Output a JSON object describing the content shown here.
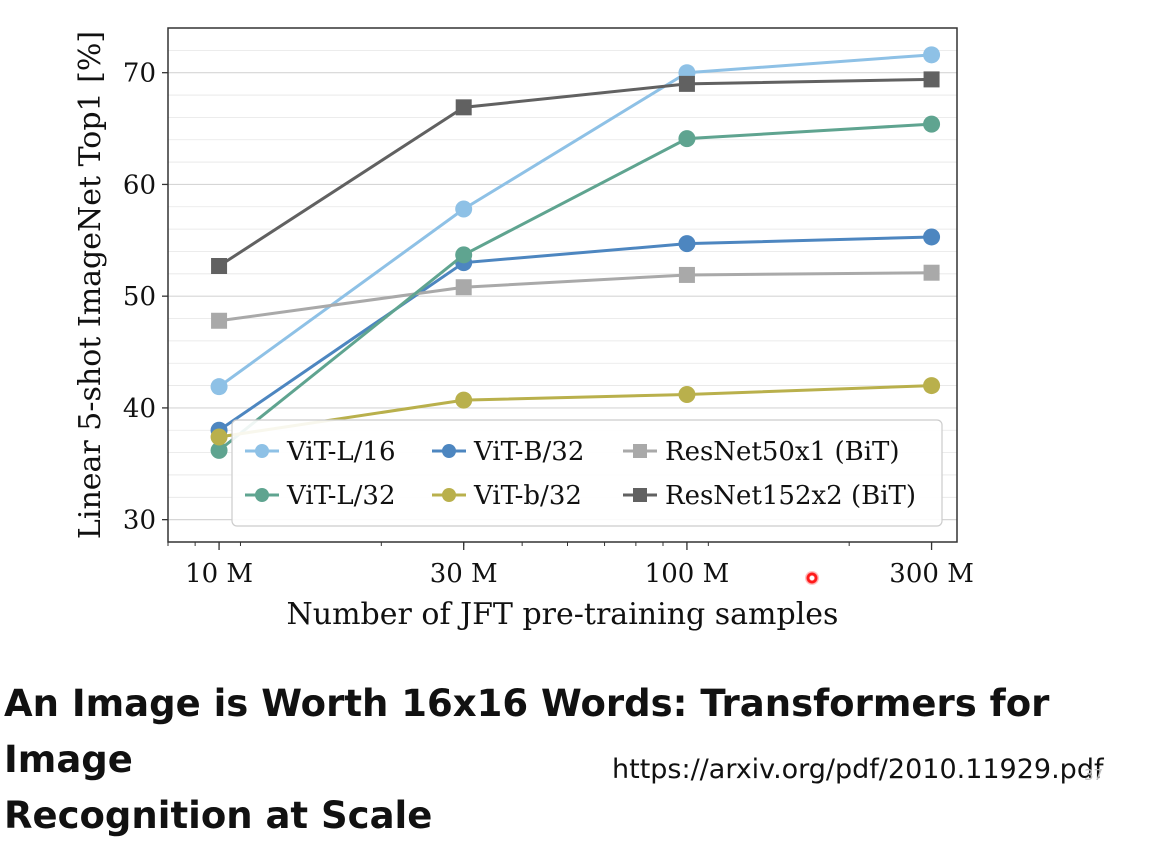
{
  "chart_data": {
    "type": "line",
    "xlabel": "Number of JFT pre-training samples",
    "ylabel": "Linear 5-shot ImageNet Top1 [%]",
    "x_scale": "log",
    "categories": [
      "10 M",
      "30 M",
      "100 M",
      "300 M"
    ],
    "x": [
      9,
      30,
      90,
      300
    ],
    "xlim": [
      7,
      340
    ],
    "ylim": [
      28,
      74
    ],
    "yticks": [
      30,
      40,
      50,
      60,
      70
    ],
    "grid": true,
    "legend": "lower-right",
    "series": [
      {
        "name": "ViT-L/16",
        "color": "#8ec1e6",
        "marker": "circle",
        "values": [
          41.9,
          57.8,
          70.0,
          71.6
        ]
      },
      {
        "name": "ViT-B/32",
        "color": "#4d86c0",
        "marker": "circle",
        "values": [
          38.0,
          53.0,
          54.7,
          55.3
        ]
      },
      {
        "name": "ResNet50x1 (BiT)",
        "color": "#a9a9a9",
        "marker": "square",
        "values": [
          47.8,
          50.8,
          51.9,
          52.1
        ]
      },
      {
        "name": "ViT-L/32",
        "color": "#5fa490",
        "marker": "circle",
        "values": [
          36.2,
          53.7,
          64.1,
          65.4
        ]
      },
      {
        "name": "ViT-b/32",
        "color": "#b9b04c",
        "marker": "circle",
        "values": [
          37.4,
          40.7,
          41.2,
          42.0
        ]
      },
      {
        "name": "ResNet152x2 (BiT)",
        "color": "#616161",
        "marker": "square",
        "values": [
          52.7,
          66.9,
          69.0,
          69.4
        ]
      }
    ]
  },
  "slide": {
    "title_line1": "An Image is Worth 16x16 Words: Transformers for Image",
    "title_line2": "Recognition at Scale",
    "url": "https://arxiv.org/pdf/2010.11929.pdf",
    "page_number": "37"
  }
}
